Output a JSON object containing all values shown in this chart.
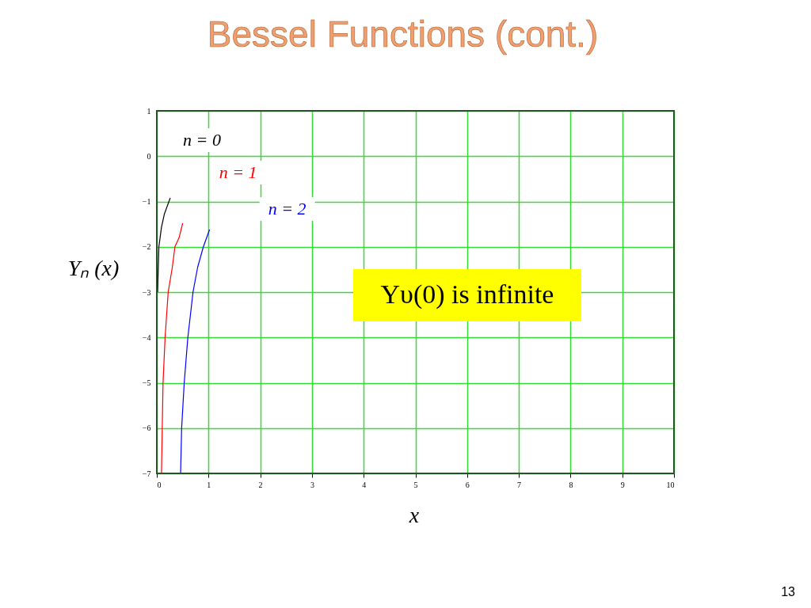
{
  "chart_data": {
    "type": "line",
    "title": "Bessel Functions (cont.)",
    "xlabel": "x",
    "ylabel": "Yₙ (x)",
    "xlim": [
      0,
      10
    ],
    "xticks": [
      0,
      1,
      2,
      3,
      4,
      5,
      6,
      7,
      8,
      9,
      10
    ],
    "ylim": [
      -7,
      1
    ],
    "yticks": [
      -7,
      -6,
      -5,
      -4,
      -3,
      -2,
      -1,
      0,
      1
    ],
    "grid": true,
    "legend": false,
    "series": [
      {
        "name": "n = 0",
        "color": "#000000",
        "x": [
          0.016,
          0.04,
          0.09,
          0.145,
          0.26
        ],
        "values": [
          -3.0,
          -2.0,
          -1.57,
          -1.28,
          -0.92
        ]
      },
      {
        "name": "n = 1",
        "color": "#ff0000",
        "x": [
          0.09,
          0.12,
          0.16,
          0.22,
          0.3,
          0.35,
          0.43,
          0.5
        ],
        "values": [
          -7.0,
          -5.02,
          -4.0,
          -3.0,
          -2.45,
          -2.0,
          -1.8,
          -1.48
        ]
      },
      {
        "name": "n = 2",
        "color": "#0000ff",
        "x": [
          0.46,
          0.48,
          0.53,
          0.6,
          0.7,
          0.79,
          0.9,
          1.02
        ],
        "values": [
          -7.0,
          -6.0,
          -5.0,
          -4.0,
          -3.0,
          -2.45,
          -2.0,
          -1.62
        ]
      }
    ],
    "annotations": [
      "Yυ(0) is infinite",
      "13"
    ]
  }
}
